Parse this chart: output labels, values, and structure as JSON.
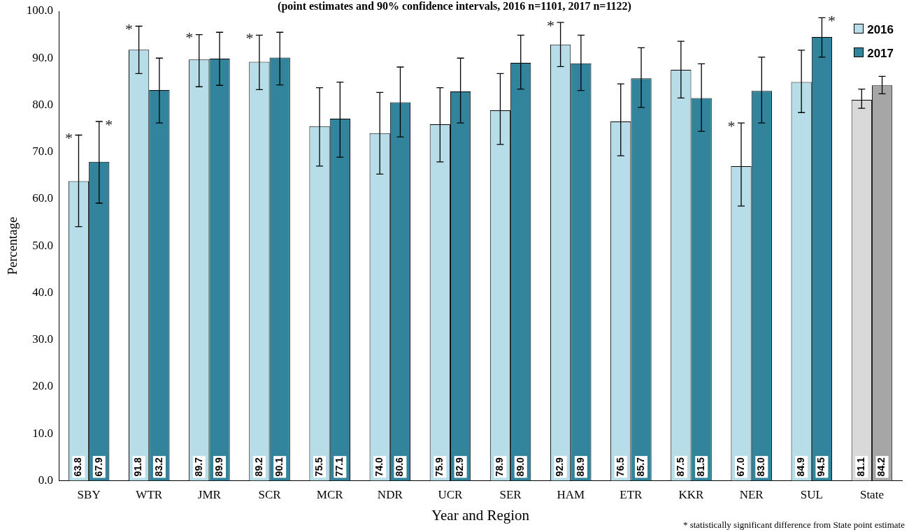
{
  "chart_data": {
    "type": "bar",
    "subtitle": "(point estimates and 90% confidence intervals, 2016 n=1101, 2017 n=1122)",
    "xlabel": "Year and Region",
    "ylabel": "Percentage",
    "categories": [
      "SBY",
      "WTR",
      "JMR",
      "SCR",
      "MCR",
      "NDR",
      "UCR",
      "SER",
      "HAM",
      "ETR",
      "KKR",
      "NER",
      "SUL",
      "State"
    ],
    "series": [
      {
        "name": "2016",
        "color": "#b7dde8",
        "colors": [
          "#b7dde8",
          "#b7dde8",
          "#b7dde8",
          "#b7dde8",
          "#b7dde8",
          "#b7dde8",
          "#b7dde8",
          "#b7dde8",
          "#b7dde8",
          "#b7dde8",
          "#b7dde8",
          "#b7dde8",
          "#b7dde8",
          "#d9d9d9"
        ],
        "values": [
          63.8,
          91.8,
          89.7,
          89.2,
          75.5,
          74.0,
          75.9,
          78.9,
          92.9,
          76.5,
          87.5,
          67.0,
          84.9,
          81.1
        ],
        "value_labels": [
          "63.8",
          "91.8",
          "89.7",
          "89.2",
          "75.5",
          "74.0",
          "75.9",
          "78.9",
          "92.9",
          "76.5",
          "87.5",
          "67.0",
          "84.9",
          "81.1"
        ],
        "errors": [
          [
            54.1,
            73.6
          ],
          [
            86.7,
            96.8
          ],
          [
            83.9,
            95.0
          ],
          [
            83.3,
            94.9
          ],
          [
            67.0,
            83.7
          ],
          [
            65.3,
            82.7
          ],
          [
            67.9,
            83.7
          ],
          [
            71.6,
            86.7
          ],
          [
            88.2,
            97.6
          ],
          [
            69.2,
            84.5
          ],
          [
            81.5,
            93.6
          ],
          [
            58.5,
            76.2
          ],
          [
            78.4,
            91.7
          ],
          [
            79.3,
            83.4
          ]
        ]
      },
      {
        "name": "2017",
        "color": "#31849b",
        "colors": [
          "#31849b",
          "#31849b",
          "#31849b",
          "#31849b",
          "#31849b",
          "#31849b",
          "#31849b",
          "#31849b",
          "#31849b",
          "#31849b",
          "#31849b",
          "#31849b",
          "#31849b",
          "#a6a6a6"
        ],
        "values": [
          67.9,
          83.2,
          89.9,
          90.1,
          77.1,
          80.6,
          82.9,
          89.0,
          88.9,
          85.7,
          81.5,
          83.0,
          94.5,
          84.2
        ],
        "value_labels": [
          "67.9",
          "83.2",
          "89.9",
          "90.1",
          "77.1",
          "80.6",
          "82.9",
          "89.0",
          "88.9",
          "85.7",
          "81.5",
          "83.0",
          "94.5",
          "84.2"
        ],
        "errors": [
          [
            59.1,
            76.5
          ],
          [
            76.2,
            90.0
          ],
          [
            84.2,
            95.5
          ],
          [
            84.3,
            95.5
          ],
          [
            68.9,
            84.9
          ],
          [
            73.2,
            88.1
          ],
          [
            76.2,
            90.0
          ],
          [
            83.4,
            94.9
          ],
          [
            83.1,
            94.9
          ],
          [
            79.5,
            92.2
          ],
          [
            74.4,
            88.8
          ],
          [
            76.2,
            90.2
          ],
          [
            90.2,
            98.6
          ],
          [
            82.4,
            86.1
          ]
        ]
      }
    ],
    "ylim": [
      0,
      100
    ],
    "yticks": [
      {
        "value": 0,
        "label": "0.0"
      },
      {
        "value": 10,
        "label": "10.0"
      },
      {
        "value": 20,
        "label": "20.0"
      },
      {
        "value": 30,
        "label": "30.0"
      },
      {
        "value": 40,
        "label": "40.0"
      },
      {
        "value": 50,
        "label": "50.0"
      },
      {
        "value": 60,
        "label": "60.0"
      },
      {
        "value": 70,
        "label": "70.0"
      },
      {
        "value": 80,
        "label": "80.0"
      },
      {
        "value": 90,
        "label": "90.0"
      },
      {
        "value": 100,
        "label": "100.0"
      }
    ],
    "legend": "top right",
    "annotations": [
      {
        "text": "*",
        "x": "SBY",
        "y": 63.8
      },
      {
        "text": "*",
        "x": "SBY",
        "y": 67.9
      },
      {
        "text": "*",
        "x": "WTR",
        "y": 91.8
      },
      {
        "text": "*",
        "x": "JMR",
        "y": 89.7
      },
      {
        "text": "*",
        "x": "SCR",
        "y": 89.2
      },
      {
        "text": "*",
        "x": "HAM",
        "y": 92.9
      },
      {
        "text": "*",
        "x": "NER",
        "y": 67.0
      },
      {
        "text": "*",
        "x": "SUL",
        "y": 94.5
      },
      "* statistically significant difference from State point estimate"
    ]
  }
}
